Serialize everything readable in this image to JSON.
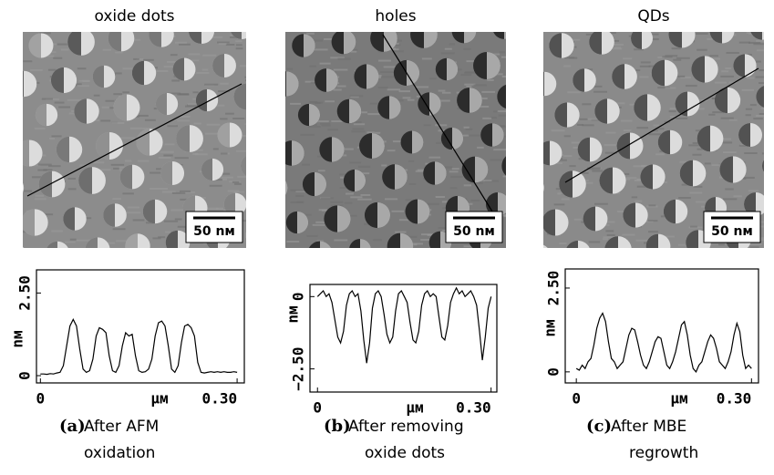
{
  "chart_data": [
    {
      "type": "line",
      "title": "oxide dots",
      "scale_bar_label": "50 nм",
      "x_label": "μм",
      "y_label": "nм",
      "caption_label": "(a)",
      "caption": [
        "After  AFM",
        "oxidation"
      ],
      "color": "#000000",
      "x": [
        0,
        0.005,
        0.01,
        0.015,
        0.02,
        0.025,
        0.03,
        0.035,
        0.04,
        0.045,
        0.05,
        0.055,
        0.06,
        0.065,
        0.07,
        0.075,
        0.08,
        0.085,
        0.09,
        0.095,
        0.1,
        0.105,
        0.11,
        0.115,
        0.12,
        0.125,
        0.13,
        0.135,
        0.14,
        0.145,
        0.15,
        0.155,
        0.16,
        0.165,
        0.17,
        0.175,
        0.18,
        0.185,
        0.19,
        0.195,
        0.2,
        0.205,
        0.21,
        0.215,
        0.22,
        0.225,
        0.23,
        0.235,
        0.24,
        0.245,
        0.25,
        0.255,
        0.26,
        0.265,
        0.27,
        0.275,
        0.28,
        0.285,
        0.29,
        0.295,
        0.3
      ],
      "values": [
        0.05,
        0.05,
        0.04,
        0.06,
        0.05,
        0.08,
        0.1,
        0.3,
        0.9,
        1.5,
        1.7,
        1.5,
        0.8,
        0.2,
        0.1,
        0.15,
        0.5,
        1.2,
        1.45,
        1.4,
        1.3,
        0.6,
        0.15,
        0.1,
        0.3,
        0.9,
        1.3,
        1.2,
        1.25,
        0.6,
        0.15,
        0.1,
        0.12,
        0.2,
        0.5,
        1.2,
        1.6,
        1.65,
        1.5,
        0.9,
        0.2,
        0.1,
        0.3,
        1.0,
        1.5,
        1.55,
        1.45,
        1.2,
        0.4,
        0.1,
        0.08,
        0.1,
        0.12,
        0.1,
        0.12,
        0.1,
        0.12,
        0.1,
        0.1,
        0.12,
        0.1
      ],
      "xlim": [
        -0.006,
        0.311
      ],
      "ylim": [
        -0.22,
        3.2
      ],
      "xticks": [
        0,
        {
          "value": 0.3,
          "label": "0.30"
        }
      ],
      "yticks": [
        0,
        {
          "value": 2.5,
          "label": "2.50"
        }
      ]
    },
    {
      "type": "line",
      "title": "holes",
      "scale_bar_label": "50 nм",
      "x_label": "μм",
      "y_label": "nм",
      "caption_label": "(b)",
      "caption": [
        "After removing",
        "oxide dots"
      ],
      "color": "#000000",
      "x": [
        0,
        0.005,
        0.01,
        0.015,
        0.02,
        0.025,
        0.03,
        0.035,
        0.04,
        0.045,
        0.05,
        0.055,
        0.06,
        0.065,
        0.07,
        0.075,
        0.08,
        0.085,
        0.09,
        0.095,
        0.1,
        0.105,
        0.11,
        0.115,
        0.12,
        0.125,
        0.13,
        0.135,
        0.14,
        0.145,
        0.15,
        0.155,
        0.16,
        0.165,
        0.17,
        0.175,
        0.18,
        0.185,
        0.19,
        0.195,
        0.2,
        0.205,
        0.21,
        0.215,
        0.22,
        0.225,
        0.23,
        0.235,
        0.24,
        0.245,
        0.25,
        0.255,
        0.26,
        0.265,
        0.27,
        0.275,
        0.28,
        0.285,
        0.29,
        0.295,
        0.3
      ],
      "values": [
        0,
        0.1,
        0.2,
        0,
        0.1,
        -0.2,
        -0.8,
        -1.4,
        -1.6,
        -1.2,
        -0.3,
        0.1,
        0.2,
        0,
        0.1,
        -0.5,
        -1.5,
        -2.3,
        -1.6,
        -0.4,
        0.1,
        0.2,
        0,
        -0.6,
        -1.3,
        -1.6,
        -1.4,
        -0.5,
        0.1,
        0.2,
        0,
        -0.2,
        -0.9,
        -1.5,
        -1.6,
        -1.2,
        -0.3,
        0.1,
        0.2,
        0,
        0.1,
        0,
        -0.7,
        -1.4,
        -1.5,
        -1.0,
        -0.2,
        0.1,
        0.3,
        0.1,
        0.2,
        0,
        0.1,
        0.2,
        0,
        -0.3,
        -1.2,
        -2.2,
        -1.4,
        -0.4,
        0
      ],
      "xlim": [
        -0.013,
        0.31
      ],
      "ylim": [
        -3.3,
        0.42
      ],
      "xticks": [
        0,
        {
          "value": 0.3,
          "label": "0.30"
        }
      ],
      "yticks": [
        0,
        {
          "value": -2.5,
          "label": "−2.50"
        }
      ]
    },
    {
      "type": "line",
      "title": "QDs",
      "scale_bar_label": "50 nм",
      "x_label": "μм",
      "y_label": "nм",
      "caption_label": "(c)",
      "caption": [
        "After MBE",
        "regrowth"
      ],
      "color": "#000000",
      "x": [
        0,
        0.005,
        0.01,
        0.015,
        0.02,
        0.025,
        0.03,
        0.035,
        0.04,
        0.045,
        0.05,
        0.055,
        0.06,
        0.065,
        0.07,
        0.075,
        0.08,
        0.085,
        0.09,
        0.095,
        0.1,
        0.105,
        0.11,
        0.115,
        0.12,
        0.125,
        0.13,
        0.135,
        0.14,
        0.145,
        0.15,
        0.155,
        0.16,
        0.165,
        0.17,
        0.175,
        0.18,
        0.185,
        0.19,
        0.195,
        0.2,
        0.205,
        0.21,
        0.215,
        0.22,
        0.225,
        0.23,
        0.235,
        0.24,
        0.245,
        0.25,
        0.255,
        0.26,
        0.265,
        0.27,
        0.275,
        0.28,
        0.285,
        0.29,
        0.295,
        0.3
      ],
      "values": [
        0.1,
        0.05,
        0.2,
        0.1,
        0.3,
        0.4,
        0.8,
        1.3,
        1.6,
        1.75,
        1.5,
        0.9,
        0.4,
        0.3,
        0.1,
        0.2,
        0.3,
        0.7,
        1.1,
        1.3,
        1.25,
        0.9,
        0.5,
        0.2,
        0.1,
        0.3,
        0.6,
        0.9,
        1.05,
        1.0,
        0.6,
        0.2,
        0.1,
        0.3,
        0.6,
        1.0,
        1.4,
        1.5,
        1.1,
        0.5,
        0.1,
        0.0,
        0.2,
        0.3,
        0.6,
        0.9,
        1.1,
        1.0,
        0.7,
        0.3,
        0.2,
        0.1,
        0.3,
        0.6,
        1.1,
        1.45,
        1.2,
        0.5,
        0.1,
        0.2,
        0.1
      ],
      "xlim": [
        -0.019,
        0.312
      ],
      "ylim": [
        -0.33,
        3.07
      ],
      "xticks": [
        0,
        {
          "value": 0.3,
          "label": "0.30"
        }
      ],
      "yticks": [
        0,
        {
          "value": 2.5,
          "label": "2.50"
        }
      ]
    }
  ]
}
